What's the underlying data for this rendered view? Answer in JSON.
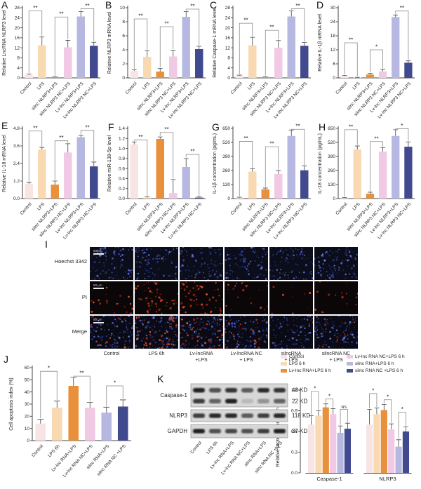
{
  "palette": [
    "#f7e4e4",
    "#f8d9b2",
    "#e8903b",
    "#f2c9e5",
    "#b7b8e2",
    "#41498f"
  ],
  "chart_data": [
    {
      "panel": "A",
      "type": "bar",
      "ylabel": "Relative LncRNA NLRP3 level",
      "ylim": [
        0,
        28
      ],
      "yticks": [
        "0",
        "4",
        "8",
        "12",
        "16",
        "20",
        "24",
        "28"
      ],
      "categories": [
        "Control",
        "LPS",
        "silnc NLRP3+LPS",
        "silnc NLRP3 NC+LPS",
        "Lv-lnc NLRP3+LPS",
        "Lv-lnc NLRP3 NC+LPS"
      ],
      "values": [
        1.2,
        13,
        0.3,
        12.2,
        24.5,
        12.8
      ],
      "errors": [
        0.3,
        3.3,
        0.2,
        2.8,
        2.0,
        1.4
      ],
      "sig": [
        {
          "from": 0,
          "to": 1,
          "label": "**",
          "y": 26.8
        },
        {
          "from": 2,
          "to": 3,
          "label": "**",
          "y": 24.3
        },
        {
          "from": 4,
          "to": 5,
          "label": "**",
          "y": 27.6
        }
      ]
    },
    {
      "panel": "B",
      "type": "bar",
      "ylabel": "Relative NLRP3 mRNA level",
      "ylim": [
        0,
        10
      ],
      "yticks": [
        "0",
        "2",
        "4",
        "6",
        "8",
        "10"
      ],
      "categories": [
        "Control",
        "LPS",
        "silnc NLRP3+LPS",
        "silnc NLRP3 NC+LPS",
        "Lv-lnc NLRP3+LPS",
        "Lv-lnc NLRP3 NC+LPS"
      ],
      "values": [
        1.0,
        3.0,
        0.9,
        3.05,
        8.7,
        4.1
      ],
      "errors": [
        0.15,
        0.9,
        0.45,
        0.9,
        0.75,
        0.4
      ],
      "sig": [
        {
          "from": 0,
          "to": 1,
          "label": "**",
          "y": 8.4
        },
        {
          "from": 2,
          "to": 3,
          "label": "**",
          "y": 7.3
        },
        {
          "from": 4,
          "to": 5,
          "label": "**",
          "y": 9.8
        }
      ]
    },
    {
      "panel": "C",
      "type": "bar",
      "ylabel": "Relative Caspase-1 mRNA level",
      "ylim": [
        0,
        28
      ],
      "yticks": [
        "0",
        "4",
        "8",
        "12",
        "16",
        "20",
        "24",
        "28"
      ],
      "categories": [
        "Control",
        "LPS",
        "silnc NLRP3+LPS",
        "silnc NLRP3 NC+LPS",
        "Lv-lnc NLRP3+LPS",
        "Lv-lnc NLRP3 NC+LPS"
      ],
      "values": [
        0.9,
        13,
        0.3,
        12,
        24.5,
        12.8
      ],
      "errors": [
        0.2,
        3.2,
        0.15,
        2.9,
        2.2,
        1.3
      ],
      "sig": [
        {
          "from": 0,
          "to": 1,
          "label": "**",
          "y": 21.8
        },
        {
          "from": 2,
          "to": 3,
          "label": "**",
          "y": 19
        },
        {
          "from": 4,
          "to": 5,
          "label": "**",
          "y": 27.6
        }
      ]
    },
    {
      "panel": "D",
      "type": "bar",
      "ylabel": "Relative IL-1β mRNA level",
      "ylim": [
        0,
        30
      ],
      "yticks": [
        "0",
        "6",
        "12",
        "18",
        "24",
        "30"
      ],
      "categories": [
        "Control",
        "LPS",
        "silnc NLRP3+LPS",
        "silnc NLRP3 NC+LPS",
        "Lv-lnc NLRP3+LPS",
        "Lv-lnc NLRP3 NC+LPS"
      ],
      "values": [
        0.8,
        0.15,
        1.4,
        2.8,
        26,
        6.5
      ],
      "errors": [
        0.25,
        0.1,
        0.5,
        0.9,
        0.9,
        0.8
      ],
      "sig": [
        {
          "from": 0,
          "to": 1,
          "label": "**",
          "y": 15
        },
        {
          "from": 2,
          "to": 3,
          "label": "*",
          "y": 12
        },
        {
          "from": 4,
          "to": 5,
          "label": "**",
          "y": 28.6
        }
      ]
    },
    {
      "panel": "E",
      "type": "bar",
      "ylabel": "Relative IL-18 mRNA level",
      "ylim": [
        0,
        4.8
      ],
      "yticks": [
        "0.0",
        "1.2",
        "2.4",
        "3.6",
        "4.8"
      ],
      "categories": [
        "Control",
        "LPS",
        "silnc NLRP3+LPS",
        "silnc NLRP3 NC+LPS",
        "Lv-lnc NLRP3+LPS",
        "Lv-lnc NLRP3 NC+LPS"
      ],
      "values": [
        1.0,
        3.35,
        0.95,
        3.15,
        4.2,
        2.2
      ],
      "errors": [
        0.1,
        0.15,
        0.25,
        0.6,
        0.12,
        0.3
      ],
      "sig": [
        {
          "from": 0,
          "to": 1,
          "label": "**",
          "y": 4.62
        },
        {
          "from": 2,
          "to": 3,
          "label": "**",
          "y": 3.95
        },
        {
          "from": 4,
          "to": 5,
          "label": "**",
          "y": 4.66
        }
      ]
    },
    {
      "panel": "F",
      "type": "bar",
      "ylabel": "Relative miR-138-5p level",
      "ylim": [
        0,
        1.4
      ],
      "yticks": [
        "0.0",
        "0.2",
        "0.4",
        "0.6",
        "0.8",
        "1.0",
        "1.2",
        "1.4"
      ],
      "categories": [
        "Control",
        "LPS",
        "silnc NLRP3+LPS",
        "silnc NLRP3 NC+LPS",
        "Lv-lnc NLRP3+LPS",
        "Lv-lnc NLRP3 NC+LPS"
      ],
      "values": [
        1.08,
        0.02,
        1.19,
        0.11,
        0.63,
        0.02
      ],
      "errors": [
        0.05,
        0.02,
        0.04,
        0.27,
        0.17,
        0.02
      ],
      "sig": [
        {
          "from": 0,
          "to": 1,
          "label": "**",
          "y": 1.17
        },
        {
          "from": 2,
          "to": 3,
          "label": "**",
          "y": 1.32
        },
        {
          "from": 4,
          "to": 5,
          "label": "**",
          "y": 0.88
        }
      ]
    },
    {
      "panel": "G",
      "type": "bar",
      "ylabel": "IL-1β concentration (pg/mL)",
      "ylim": [
        0,
        650
      ],
      "yticks": [
        "0",
        "130",
        "260",
        "390",
        "520",
        "650"
      ],
      "categories": [
        "Control",
        "LPS",
        "silnc NLRP3+LPS",
        "silnc NLRP3 NC+LPS",
        "Lv-lnc NLRP3+LPS",
        "Lv-lnc NLRP3 NC+LPS"
      ],
      "values": [
        8,
        250,
        85,
        228,
        580,
        262
      ],
      "errors": [
        5,
        28,
        13,
        30,
        55,
        40
      ],
      "sig": [
        {
          "from": 0,
          "to": 1,
          "label": "**",
          "y": 530
        },
        {
          "from": 2,
          "to": 3,
          "label": "**",
          "y": 480
        },
        {
          "from": 4,
          "to": 5,
          "label": "**",
          "y": 642
        }
      ]
    },
    {
      "panel": "H",
      "type": "bar",
      "ylabel": "IL-18 concentration (pg/mL)",
      "ylim": [
        0,
        650
      ],
      "yticks": [
        "0",
        "130",
        "260",
        "390",
        "520",
        "650"
      ],
      "categories": [
        "Control",
        "LPS",
        "silnc NLRP3+LPS",
        "silnc NLRP3 NC+LPS",
        "Lv-lnc NLRP3+LPS",
        "Lv-lnc NLRP3 NC+LPS"
      ],
      "values": [
        5,
        455,
        45,
        435,
        580,
        480
      ],
      "errors": [
        4,
        32,
        14,
        38,
        58,
        45
      ],
      "sig": [
        {
          "from": 0,
          "to": 1,
          "label": "**",
          "y": 638
        },
        {
          "from": 2,
          "to": 3,
          "label": "**",
          "y": 528
        },
        {
          "from": 4,
          "to": 5,
          "label": "*",
          "y": 648
        }
      ]
    },
    {
      "panel": "J",
      "type": "bar",
      "ylabel": "Cell apoptosis index (%)",
      "ylim": [
        0,
        60
      ],
      "yticks": [
        "0",
        "10",
        "20",
        "30",
        "40",
        "50",
        "60"
      ],
      "categories": [
        "Control",
        "LPS 6h",
        "Lv-lnc RNA+LPS",
        "Lv-lnc RNA NC+LPS",
        "silnc RNA+LPS",
        "silnc RNA NC +LPS"
      ],
      "values": [
        14,
        27,
        45,
        27,
        23,
        28
      ],
      "errors": [
        3.5,
        5.5,
        7,
        4.5,
        4.5,
        5.5
      ],
      "sig": [
        {
          "from": 0,
          "to": 1,
          "label": "*",
          "y": 57
        },
        {
          "from": 2,
          "to": 3,
          "label": "**",
          "y": 53
        },
        {
          "from": 4,
          "to": 5,
          "label": "*",
          "y": 45
        }
      ]
    },
    {
      "panel": "",
      "type": "grouped-bar",
      "ylabel": "Relative protein expression level",
      "ylim": [
        0,
        1.2
      ],
      "yticks": [
        "0.0",
        "0.3",
        "0.6",
        "0.9",
        "1.2"
      ],
      "categories": [
        "Caspase-1",
        "NLRP3"
      ],
      "series": [
        {
          "name": "Control",
          "values": [
            0.7,
            0.7
          ],
          "errors": [
            0.13,
            0.22
          ]
        },
        {
          "name": "LPS 6 h",
          "values": [
            0.83,
            0.85
          ],
          "errors": [
            0.07,
            0.09
          ]
        },
        {
          "name": "Lv-lnc RNA+LPS 6 h",
          "values": [
            0.95,
            0.91
          ],
          "errors": [
            0.05,
            0.08
          ]
        },
        {
          "name": "Lv-lnc RNA NC+LPS 6 h",
          "values": [
            0.85,
            0.63
          ],
          "errors": [
            0.08,
            0.08
          ]
        },
        {
          "name": "silnc RNA+LPS 6 h",
          "values": [
            0.58,
            0.38
          ],
          "errors": [
            0.1,
            0.1
          ]
        },
        {
          "name": "silnc RNA NC +LPS 6 h",
          "values": [
            0.64,
            0.6
          ],
          "errors": [
            0.08,
            0.07
          ]
        }
      ],
      "sig": [
        {
          "g": 0,
          "from": 0,
          "to": 1,
          "label": "*",
          "y": 1.18
        },
        {
          "g": 0,
          "from": 2,
          "to": 3,
          "label": "*",
          "y": 1.07
        },
        {
          "g": 0,
          "from": 4,
          "to": 5,
          "label": "NS",
          "y": 0.92
        },
        {
          "g": 1,
          "from": 0,
          "to": 1,
          "label": "*",
          "y": 1.15
        },
        {
          "g": 1,
          "from": 2,
          "to": 3,
          "label": "*",
          "y": 1.06
        },
        {
          "g": 1,
          "from": 4,
          "to": 5,
          "label": "*",
          "y": 0.88
        }
      ]
    }
  ],
  "microscopy": {
    "label": "I",
    "row_labels": [
      "Hoechst 3342",
      "PI",
      "Merge"
    ],
    "col_labels": [
      "Control",
      "LPS 6h",
      "Lv-lncRNA\n+LPS",
      "Lv-lncRNA NC\n+ LPS",
      "silncRNA\n+ LPS",
      "silncRNA NC\n+ LPS"
    ],
    "scale_bar_label": "50 μm",
    "pi_density": [
      0.35,
      1,
      1,
      0.4,
      0.15,
      0.3
    ]
  },
  "blot": {
    "label": "K",
    "lanes": [
      "Control",
      "LPS 6h",
      "Lv-lnc RNA+LPS",
      "Lv-lnc RNA NC+LPS",
      "silnc RNA+LPS",
      "silnc RNA NC +LPS"
    ],
    "rows": [
      {
        "name": "Caspase-1",
        "bands": [
          {
            "kd": "48 KD",
            "intensity": [
              0.95,
              0.7,
              0.85,
              0.65,
              0.9,
              0.85
            ]
          },
          {
            "kd": "22 KD",
            "intensity": [
              0.8,
              0.6,
              0.95,
              0.15,
              0.35,
              0.6
            ]
          }
        ]
      },
      {
        "name": "NLRP3",
        "bands": [
          {
            "kd": "118 KD",
            "intensity": [
              0.8,
              0.9,
              0.9,
              0.65,
              0.8,
              0.9
            ]
          }
        ]
      },
      {
        "name": "GAPDH",
        "bands": [
          {
            "kd": "37 KD",
            "intensity": [
              0.95,
              0.7,
              0.75,
              0.7,
              0.8,
              0.95
            ]
          }
        ]
      }
    ]
  },
  "legend": {
    "entries": [
      "Control",
      "LPS 6 h",
      "Lv-lnc RNA+LPS 6 h",
      "Lv-lnc RNA NC+LPS 6 h",
      "silnc RNA+LPS 6 h",
      "silnc RNA NC +LPS 6 h"
    ]
  }
}
